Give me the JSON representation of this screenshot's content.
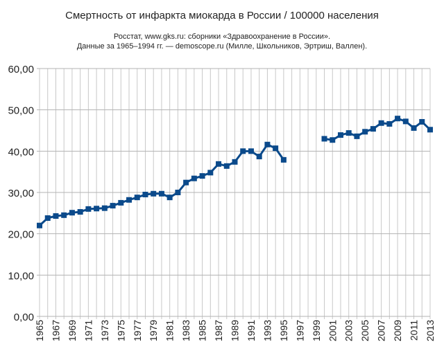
{
  "chart_data": {
    "type": "line",
    "title": "Смертность от инфаркта миокарда в России / 100000 населения",
    "subtitle": [
      "Росстат, www.gks.ru: сборники «Здравоохранение в России».",
      "Данные за 1965–1994 гг. — demoscope.ru (Милле, Школьников, Эртриш, Валлен)."
    ],
    "xlabel": "",
    "ylabel": "",
    "xlim": [
      1965,
      2013
    ],
    "ylim": [
      0,
      60
    ],
    "yticks": [
      "0,00",
      "10,00",
      "20,00",
      "30,00",
      "40,00",
      "50,00",
      "60,00"
    ],
    "xticks": [
      "1965",
      "1967",
      "1969",
      "1971",
      "1973",
      "1975",
      "1977",
      "1979",
      "1981",
      "1983",
      "1985",
      "1987",
      "1989",
      "1991",
      "1993",
      "1995",
      "1997",
      "1999",
      "2001",
      "2003",
      "2005",
      "2007",
      "2009",
      "2011",
      "2013"
    ],
    "grid": true,
    "legend": "none",
    "color": "#0b4a8b",
    "x": [
      1965,
      1966,
      1967,
      1968,
      1969,
      1970,
      1971,
      1972,
      1973,
      1974,
      1975,
      1976,
      1977,
      1978,
      1979,
      1980,
      1981,
      1982,
      1983,
      1984,
      1985,
      1986,
      1987,
      1988,
      1989,
      1990,
      1991,
      1992,
      1993,
      1994,
      1995,
      1996,
      1997,
      1998,
      1999,
      2000,
      2001,
      2002,
      2003,
      2004,
      2005,
      2006,
      2007,
      2008,
      2009,
      2010,
      2011,
      2012,
      2013
    ],
    "values": [
      22.0,
      23.8,
      24.3,
      24.5,
      25.1,
      25.3,
      26.0,
      26.1,
      26.2,
      26.8,
      27.5,
      28.2,
      28.8,
      29.5,
      29.7,
      29.7,
      28.8,
      30.0,
      32.4,
      33.4,
      34.0,
      34.8,
      36.9,
      36.4,
      37.4,
      40.0,
      40.0,
      38.7,
      41.6,
      40.7,
      37.9,
      null,
      null,
      null,
      null,
      43.0,
      42.7,
      43.9,
      44.4,
      43.6,
      44.7,
      45.4,
      46.8,
      46.6,
      47.9,
      47.2,
      45.6,
      47.1,
      45.2
    ]
  }
}
